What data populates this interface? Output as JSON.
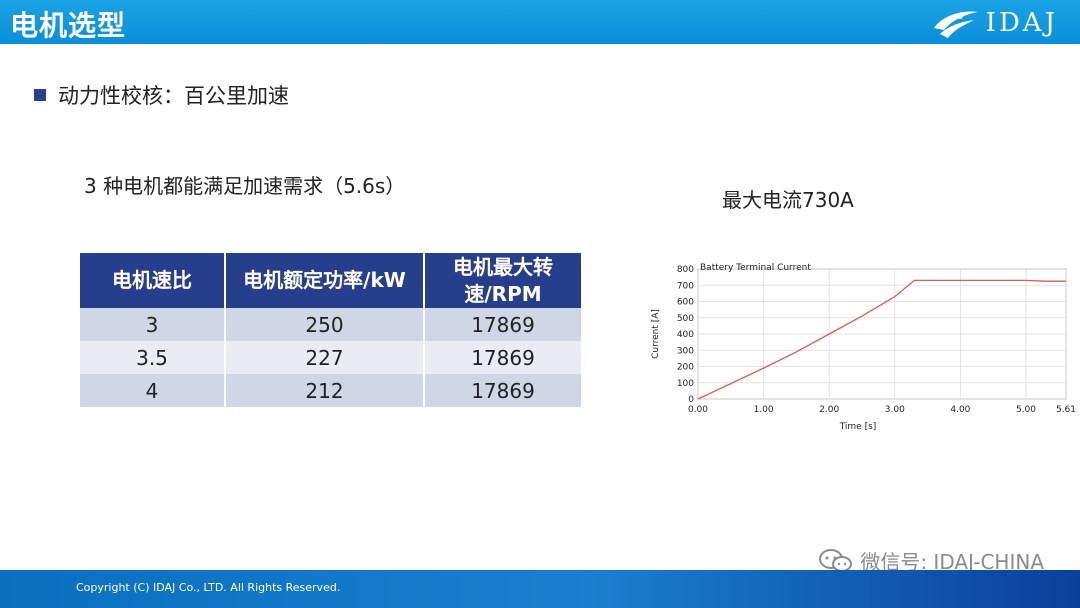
{
  "header": {
    "title": "电机选型",
    "logo_text": "IDAJ"
  },
  "section": {
    "bullet": "动力性校核：百公里加速"
  },
  "summary": "3 种电机都能满足加速需求（5.6s）",
  "table": {
    "headers": [
      "电机速比",
      "电机额定功率/kW",
      "电机最大转速/RPM"
    ],
    "rows": [
      [
        "3",
        "250",
        "17869"
      ],
      [
        "3.5",
        "227",
        "17869"
      ],
      [
        "4",
        "212",
        "17869"
      ]
    ]
  },
  "chart_caption": "最大电流730A",
  "chart_data": {
    "type": "line",
    "title": "Battery Terminal Current",
    "xlabel": "Time [s]",
    "ylabel": "Current [A]",
    "xlim": [
      0,
      5.61
    ],
    "ylim": [
      0,
      800
    ],
    "x_ticks": [
      "0.00",
      "1.00",
      "2.00",
      "3.00",
      "4.00",
      "5.00",
      "5.61"
    ],
    "y_ticks": [
      "0",
      "100",
      "200",
      "300",
      "400",
      "500",
      "600",
      "700",
      "800"
    ],
    "grid": true,
    "series": [
      {
        "color": "#e05a5a",
        "x": [
          0,
          0.5,
          1.0,
          1.5,
          2.0,
          2.5,
          3.0,
          3.3,
          4.0,
          5.0,
          5.3,
          5.61
        ],
        "y": [
          0,
          95,
          190,
          290,
          400,
          510,
          630,
          730,
          730,
          730,
          725,
          725
        ]
      }
    ]
  },
  "footer": {
    "copyright": "Copyright (C) IDAJ Co., LTD. All Rights Reserved."
  },
  "watermark": {
    "text": "微信号: IDAJ-CHINA",
    "icon": "wechat-icon"
  },
  "colors": {
    "header_blue": "#0a8fd8",
    "table_header": "#263e8c",
    "bullet": "#2a3f8f",
    "series": "#e05a5a"
  }
}
